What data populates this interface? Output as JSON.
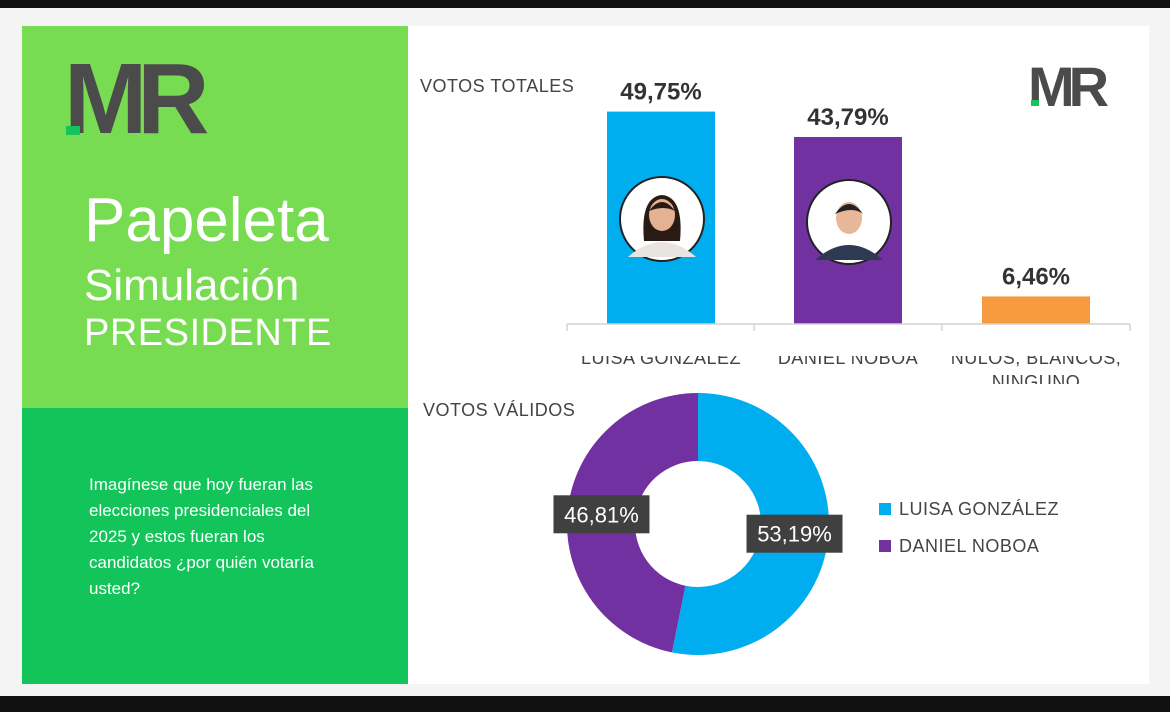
{
  "brand": {
    "logo_text": "MR",
    "colors": {
      "green_light": "#78dc52",
      "green_dark": "#12c45a",
      "logo_gray": "#4b4b4b",
      "gonzalez": "#00adef",
      "noboa": "#7131a1",
      "nulos": "#f59a3f"
    }
  },
  "left_panel": {
    "title": "Papeleta",
    "subtitle": "Simulación",
    "office": "PRESIDENTE",
    "question": "Imagínese que hoy fueran las elecciones presidenciales del 2025 y estos fueran los candidatos  ¿por quién votaría usted?"
  },
  "chart_data": [
    {
      "type": "bar",
      "title": "VOTOS TOTALES",
      "categories": [
        "LUISA GONZÁLEZ",
        "DANIEL NOBOA",
        "NULOS, BLANCOS, NINGUNO"
      ],
      "values": [
        49.75,
        43.79,
        6.46
      ],
      "value_labels": [
        "49,75%",
        "43,79%",
        "6,46%"
      ],
      "unit": "%",
      "colors": [
        "#00adef",
        "#7131a1",
        "#f59a3f"
      ],
      "candidate_photos": [
        "Luisa González portrait",
        "Daniel Noboa portrait"
      ],
      "grid": false
    },
    {
      "type": "pie",
      "variant": "donut",
      "title": "VOTOS VÁLIDOS",
      "categories": [
        "LUISA GONZÁLEZ",
        "DANIEL NOBOA"
      ],
      "values": [
        53.19,
        46.81
      ],
      "value_labels": [
        "53,19%",
        "46,81%"
      ],
      "unit": "%",
      "colors": [
        "#00adef",
        "#7131a1"
      ],
      "legend_position": "right"
    }
  ]
}
